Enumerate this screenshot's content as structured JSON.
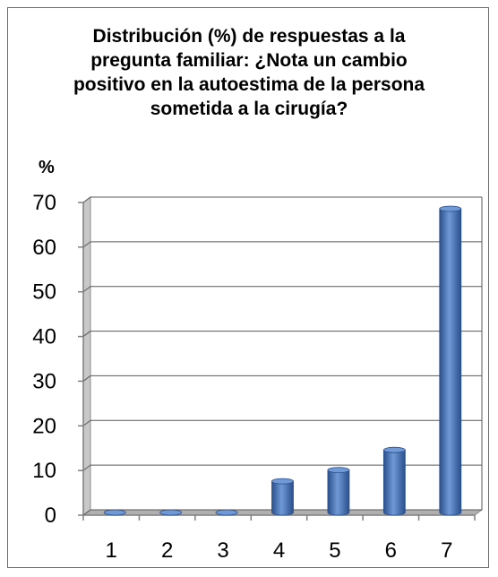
{
  "chart_data": {
    "type": "bar",
    "title": "Distribución (%) de respuestas a la pregunta familiar: ¿Nota un cambio positivo en la autoestima de la persona sometida a la cirugía?",
    "ylabel": "%",
    "xlabel": "",
    "categories": [
      "1",
      "2",
      "3",
      "4",
      "5",
      "6",
      "7"
    ],
    "values": [
      0,
      0,
      0,
      7,
      9.5,
      14,
      68
    ],
    "ylim": [
      0,
      70
    ],
    "yticks": [
      0,
      10,
      20,
      30,
      40,
      50,
      60,
      70
    ],
    "grid": true,
    "legend": "none",
    "bar_color": "#3f6fb6",
    "bar_dark_color": "#2a4f8c",
    "bar_light_color": "#6f9ad6",
    "wall_color": "#c8c8c8",
    "floor_color": "#b0b0b0",
    "grid_color": "#595959"
  }
}
